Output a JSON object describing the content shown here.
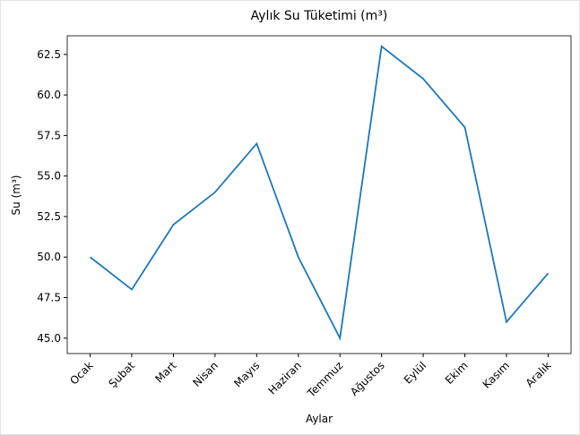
{
  "chart_data": {
    "type": "line",
    "title": "Aylık Su Tüketimi (m³)",
    "x_label": "Aylar",
    "y_label": "Su (m³)",
    "categories": [
      "Ocak",
      "Şubat",
      "Mart",
      "Nisan",
      "Mayıs",
      "Haziran",
      "Temmuz",
      "Ağustos",
      "Eylül",
      "Ekim",
      "Kasım",
      "Aralık"
    ],
    "values": [
      50,
      48,
      52,
      54,
      57,
      50,
      45,
      63,
      61,
      58,
      46,
      49
    ],
    "color": "#1f77b4",
    "ylim": [
      44.05,
      63.65
    ],
    "yticks": [
      {
        "value": 45,
        "label": "45.0"
      },
      47.5,
      {
        "value": 50,
        "label": "50.0"
      },
      52.5,
      {
        "value": 55,
        "label": "55.0"
      },
      57.5,
      {
        "value": 60,
        "label": "60.0"
      },
      62.5
    ]
  }
}
